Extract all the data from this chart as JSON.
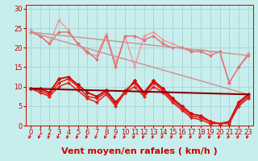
{
  "xlabel": "Vent moyen/en rafales ( km/h )",
  "bg_color": "#c8eded",
  "grid_color": "#a8d8d8",
  "xlim": [
    -0.5,
    23.5
  ],
  "ylim": [
    0,
    31
  ],
  "yticks": [
    0,
    5,
    10,
    15,
    20,
    25,
    30
  ],
  "xticks": [
    0,
    1,
    2,
    3,
    4,
    5,
    6,
    7,
    8,
    9,
    10,
    11,
    12,
    13,
    14,
    15,
    16,
    17,
    18,
    19,
    20,
    21,
    22,
    23
  ],
  "lines": [
    {
      "x": [
        0,
        1,
        2,
        3,
        4,
        5,
        6,
        7,
        8,
        9,
        10,
        11,
        12,
        13,
        14,
        15,
        16,
        17,
        18,
        19,
        20,
        21,
        22,
        23
      ],
      "y": [
        24.5,
        23,
        21,
        27,
        24.5,
        21,
        18.5,
        18,
        23.5,
        16,
        23,
        15,
        23,
        24,
        22,
        21,
        20,
        19.5,
        19.5,
        19,
        19,
        11,
        15,
        18.5
      ],
      "color": "#f09898",
      "lw": 1.0,
      "marker": "D",
      "ms": 2.0
    },
    {
      "x": [
        0,
        1,
        2,
        3,
        4,
        5,
        6,
        7,
        8,
        9,
        10,
        11,
        12,
        13,
        14,
        15,
        16,
        17,
        18,
        19,
        20,
        21,
        22,
        23
      ],
      "y": [
        24,
        23,
        21,
        24,
        24,
        21,
        19,
        17,
        23,
        15,
        23,
        23,
        22,
        23,
        21,
        20,
        20,
        19,
        19,
        18,
        19,
        11,
        15,
        18
      ],
      "color": "#e07070",
      "lw": 1.0,
      "marker": "D",
      "ms": 2.0
    },
    {
      "x": [
        0,
        23
      ],
      "y": [
        24,
        18
      ],
      "color": "#d09090",
      "lw": 1.0,
      "marker": null,
      "ms": 0
    },
    {
      "x": [
        0,
        23
      ],
      "y": [
        24,
        8
      ],
      "color": "#d09090",
      "lw": 1.0,
      "marker": null,
      "ms": 0
    },
    {
      "x": [
        0,
        1,
        2,
        3,
        4,
        5,
        6,
        7,
        8,
        9,
        10,
        11,
        12,
        13,
        14,
        15,
        16,
        17,
        18,
        19,
        20,
        21,
        22,
        23
      ],
      "y": [
        9.5,
        9.5,
        8.5,
        12,
        12.5,
        10.5,
        8.5,
        7.5,
        9,
        6,
        8.5,
        11.5,
        8.5,
        11.5,
        9.5,
        7,
        5,
        3,
        2.5,
        1,
        0.5,
        1,
        6,
        8
      ],
      "color": "#cc0000",
      "lw": 1.3,
      "marker": "D",
      "ms": 2.5
    },
    {
      "x": [
        0,
        1,
        2,
        3,
        4,
        5,
        6,
        7,
        8,
        9,
        10,
        11,
        12,
        13,
        14,
        15,
        16,
        17,
        18,
        19,
        20,
        21,
        22,
        23
      ],
      "y": [
        9.5,
        9,
        8,
        11,
        12,
        10,
        7.5,
        7,
        8.5,
        5.5,
        9,
        11,
        8,
        11,
        9,
        6.5,
        4.5,
        2.5,
        2,
        1,
        0.5,
        1,
        5.5,
        7.5
      ],
      "color": "#ee1111",
      "lw": 1.1,
      "marker": "D",
      "ms": 2.2
    },
    {
      "x": [
        0,
        1,
        2,
        3,
        4,
        5,
        6,
        7,
        8,
        9,
        10,
        11,
        12,
        13,
        14,
        15,
        16,
        17,
        18,
        19,
        20,
        21,
        22,
        23
      ],
      "y": [
        9.5,
        8.5,
        7.5,
        10,
        11,
        9,
        7,
        6,
        8,
        5,
        8.5,
        10,
        7.5,
        10,
        8.5,
        6,
        4,
        2,
        1.5,
        0.5,
        0.5,
        0.5,
        5,
        7
      ],
      "color": "#dd2222",
      "lw": 1.1,
      "marker": "D",
      "ms": 2.2
    },
    {
      "x": [
        0,
        23
      ],
      "y": [
        9.5,
        8.0
      ],
      "color": "#880000",
      "lw": 1.5,
      "marker": null,
      "ms": 0
    }
  ],
  "xlabel_fontsize": 8,
  "tick_fontsize": 6,
  "tick_color": "#cc0000",
  "xlabel_color": "#cc0000",
  "arrow_color": "#cc0000"
}
